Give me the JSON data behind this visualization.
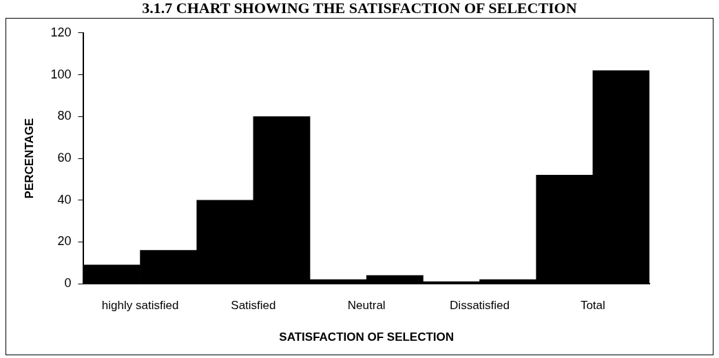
{
  "chart_data": {
    "type": "bar",
    "title": "3.1.7 CHART SHOWING THE SATISFACTION OF SELECTION",
    "xlabel": "SATISFACTION OF SELECTION",
    "ylabel": "PERCENTAGE",
    "categories": [
      "highly satisfied",
      "Satisfied",
      "Neutral",
      "Dissatisfied",
      "Total"
    ],
    "series": [
      {
        "color": "#000000",
        "values": [
          9,
          40,
          2,
          1,
          52
        ]
      },
      {
        "color": "#000000",
        "values": [
          16,
          80,
          4,
          2,
          102
        ]
      }
    ],
    "ylim": [
      0,
      120
    ],
    "yticks": [
      0,
      20,
      40,
      60,
      80,
      100,
      120
    ],
    "grid": false,
    "legend": false
  }
}
